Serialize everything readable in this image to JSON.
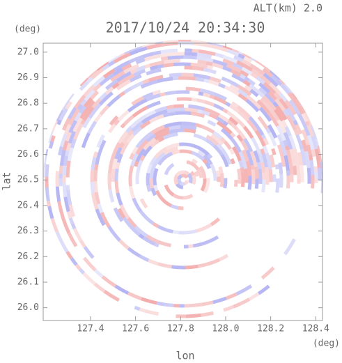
{
  "chart_data": {
    "type": "radar-field",
    "title": "2017/10/24 20:34:30",
    "subtitle": "ALT(km) 2.0",
    "x_label": "lon",
    "x_unit": "(deg)",
    "y_label": "lat",
    "y_unit": "(deg)",
    "xlim": [
      127.19,
      128.43
    ],
    "xticks": [
      127.4,
      127.6,
      127.8,
      {
        "value": 128.0,
        "label": "128.0"
      },
      128.2,
      128.4
    ],
    "ylim": [
      25.95,
      27.035
    ],
    "yticks": [
      {
        "value": 26.0,
        "label": "26.0"
      },
      26.1,
      26.2,
      26.3,
      26.4,
      26.5,
      26.6,
      26.7,
      26.8,
      26.9,
      {
        "value": 27.0,
        "label": "27.0"
      }
    ]
  }
}
